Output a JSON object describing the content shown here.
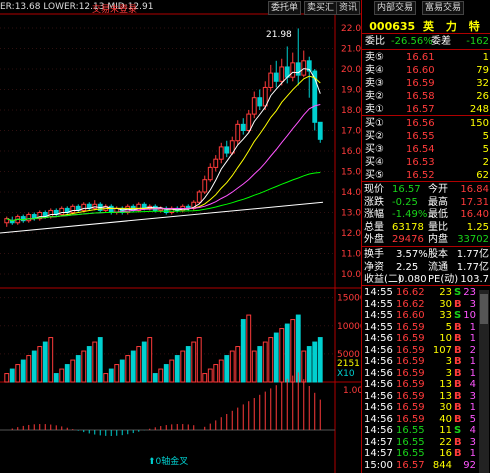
{
  "header": {
    "range_text": "ER:13.68  LOWER:12.13  MID:12.91",
    "login": "交易未登录",
    "tabs": [
      "委托单",
      "卖买汇",
      "资讯",
      "内部交易",
      "富易交易"
    ],
    "price_peak": "21.98"
  },
  "yaxis": [
    "22.00",
    "21.00",
    "20.00",
    "19.00",
    "18.00",
    "17.00",
    "16.00",
    "15.00",
    "14.00",
    "13.00",
    "12.00",
    "11.00",
    "10.00"
  ],
  "vol_axis": [
    "15000",
    "10000",
    "5000"
  ],
  "vol_badge": "2151",
  "vol_badge2": "X10",
  "macd_axis": "1.00",
  "macd_label": "0轴金叉",
  "quote": {
    "code": "000635",
    "name": "英 力 特",
    "weibi_label": "委比",
    "weibi": "-26.56%",
    "weicha_label": "委差",
    "weicha": "-162",
    "asks": [
      {
        "label": "卖⑤",
        "price": "16.61",
        "vol": "1"
      },
      {
        "label": "卖④",
        "price": "16.60",
        "vol": "79"
      },
      {
        "label": "卖③",
        "price": "16.59",
        "vol": "32"
      },
      {
        "label": "卖②",
        "price": "16.58",
        "vod": "",
        "vol": "26"
      },
      {
        "label": "卖①",
        "price": "16.57",
        "vol": "248"
      }
    ],
    "bids": [
      {
        "label": "买①",
        "price": "16.56",
        "vol": "150"
      },
      {
        "label": "买②",
        "price": "16.55",
        "vol": "5"
      },
      {
        "label": "买③",
        "price": "16.54",
        "vol": "5"
      },
      {
        "label": "买④",
        "price": "16.53",
        "vol": "2"
      },
      {
        "label": "买⑤",
        "price": "16.52",
        "vol": "62"
      }
    ],
    "stats": [
      {
        "l1": "现价",
        "v1": "16.57",
        "l2": "今开",
        "v2": "16.84"
      },
      {
        "l1": "涨跌",
        "v1": "-0.25",
        "l2": "最高",
        "v2": "17.31"
      },
      {
        "l1": "涨幅",
        "v1": "-1.49%",
        "l2": "最低",
        "v2": "16.40"
      },
      {
        "l1": "总量",
        "v1": "63178",
        "l2": "量比",
        "v2": "1.25"
      },
      {
        "l1": "外盘",
        "v1": "29476",
        "l2": "内盘",
        "v2": "33702"
      }
    ],
    "stats2": [
      {
        "l1": "换手",
        "v1": "3.57%",
        "l2": "股本",
        "v2": "1.77亿"
      },
      {
        "l1": "净资",
        "v1": "2.25",
        "l2": "流通",
        "v2": "1.77亿"
      },
      {
        "l1": "收益(二)",
        "v1": "0.080",
        "l2": "PE(动)",
        "v2": "103.7"
      }
    ],
    "ticks": [
      {
        "t": "14:55",
        "p": "16.62",
        "v": "23",
        "d": "S",
        "n": "23"
      },
      {
        "t": "14:55",
        "p": "16.62",
        "v": "30",
        "d": "B",
        "n": "3"
      },
      {
        "t": "14:55",
        "p": "16.60",
        "v": "33",
        "d": "S",
        "n": "10"
      },
      {
        "t": "14:55",
        "p": "16.59",
        "v": "5",
        "d": "B",
        "n": "1"
      },
      {
        "t": "14:56",
        "p": "16.59",
        "v": "10",
        "d": "B",
        "n": "1"
      },
      {
        "t": "14:56",
        "p": "16.59",
        "v": "107",
        "d": "B",
        "n": "2"
      },
      {
        "t": "14:56",
        "p": "16.59",
        "v": "3",
        "d": "B",
        "n": "1"
      },
      {
        "t": "14:56",
        "p": "16.59",
        "v": "3",
        "d": "B",
        "n": "1"
      },
      {
        "t": "14:56",
        "p": "16.59",
        "v": "13",
        "d": "B",
        "n": "4"
      },
      {
        "t": "14:56",
        "p": "16.59",
        "v": "13",
        "d": "B",
        "n": "3"
      },
      {
        "t": "14:56",
        "p": "16.59",
        "v": "30",
        "d": "B",
        "n": "1"
      },
      {
        "t": "14:56",
        "p": "16.59",
        "v": "40",
        "d": "B",
        "n": "5"
      },
      {
        "t": "14:56",
        "p": "16.55",
        "v": "11",
        "d": "S",
        "n": "4"
      },
      {
        "t": "14:57",
        "p": "16.55",
        "v": "22",
        "d": "B",
        "n": "3"
      },
      {
        "t": "14:57",
        "p": "16.55",
        "v": "16",
        "d": "B",
        "n": "1"
      },
      {
        "t": "15:00",
        "p": "16.57",
        "v": "844",
        "d": "",
        "n": "92"
      }
    ]
  }
}
